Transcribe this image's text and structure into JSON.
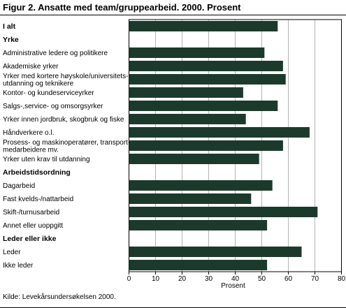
{
  "title": "Figur 2. Ansatte med team/gruppearbeid. 2000. Prosent",
  "source": "Kilde: Levekårsundersøkelsen 2000.",
  "colors": {
    "bar": "#1c3a2c",
    "grid": "#b4b4b4",
    "frame": "#000000"
  },
  "chart_data": {
    "type": "bar",
    "orientation": "horizontal",
    "xlabel": "Prosent",
    "xlim": [
      0,
      80
    ],
    "xticks": [
      0,
      10,
      20,
      30,
      40,
      50,
      60,
      70,
      80
    ],
    "grid": true,
    "rows": [
      {
        "label": [
          "I alt"
        ],
        "bold": true,
        "value": 56
      },
      {
        "label": [
          "Yrke"
        ],
        "bold": true,
        "value": null
      },
      {
        "label": [
          "Administrative ledere og politikere"
        ],
        "bold": false,
        "value": 51
      },
      {
        "label": [
          "Akademiske yrker"
        ],
        "bold": false,
        "value": 58
      },
      {
        "label": [
          "Yrker med kortere høyskole/universitets-",
          "utdanning og teknikere"
        ],
        "bold": false,
        "value": 59
      },
      {
        "label": [
          "Kontor- og kundeserviceyrker"
        ],
        "bold": false,
        "value": 43
      },
      {
        "label": [
          "Salgs-,service- og omsorgsyrker"
        ],
        "bold": false,
        "value": 56
      },
      {
        "label": [
          "Yrker innen jordbruk, skogbruk og fiske"
        ],
        "bold": false,
        "value": 44
      },
      {
        "label": [
          "Håndverkere o.l."
        ],
        "bold": false,
        "value": 68
      },
      {
        "label": [
          "Prosess- og maskinoperatører, transport-",
          "medarbeidere mv."
        ],
        "bold": false,
        "value": 58
      },
      {
        "label": [
          "Yrker uten krav til utdanning"
        ],
        "bold": false,
        "value": 49
      },
      {
        "label": [
          "Arbeidstidsordning"
        ],
        "bold": true,
        "value": null
      },
      {
        "label": [
          "Dagarbeid"
        ],
        "bold": false,
        "value": 54
      },
      {
        "label": [
          "Fast kvelds-/nattarbeid"
        ],
        "bold": false,
        "value": 46
      },
      {
        "label": [
          "Skift-/turnusarbeid"
        ],
        "bold": false,
        "value": 71
      },
      {
        "label": [
          "Annet eller uoppgitt"
        ],
        "bold": false,
        "value": 52
      },
      {
        "label": [
          "Leder eller ikke"
        ],
        "bold": true,
        "value": null
      },
      {
        "label": [
          "Leder"
        ],
        "bold": false,
        "value": 65
      },
      {
        "label": [
          "Ikke leder"
        ],
        "bold": false,
        "value": 52
      }
    ]
  }
}
